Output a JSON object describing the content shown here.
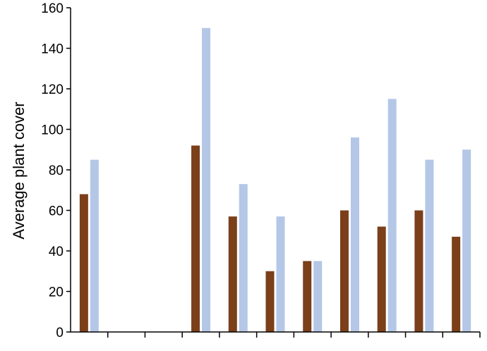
{
  "chart_data": {
    "type": "bar",
    "title": "",
    "xlabel": "",
    "ylabel": "Average plant cover",
    "ylim": [
      0,
      160
    ],
    "yticks": [
      0,
      20,
      40,
      60,
      80,
      100,
      120,
      140,
      160
    ],
    "grid": false,
    "legend": "none",
    "categories": [
      "",
      "",
      "",
      "",
      "",
      "",
      "",
      "",
      "",
      "",
      ""
    ],
    "series": [
      {
        "color": "#7B3F1A",
        "values": [
          68,
          null,
          null,
          92,
          57,
          30,
          35,
          60,
          52,
          60,
          47
        ]
      },
      {
        "color": "#B4C7E7",
        "values": [
          85,
          null,
          null,
          150,
          73,
          57,
          35,
          96,
          115,
          85,
          90
        ]
      }
    ]
  }
}
